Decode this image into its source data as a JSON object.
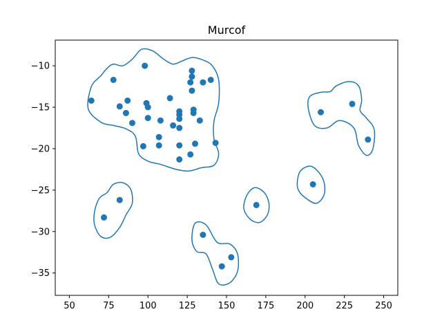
{
  "chart_data": {
    "type": "scatter",
    "title": "Murcof",
    "xlabel": "",
    "ylabel": "",
    "xlim": [
      41,
      259
    ],
    "ylim": [
      -37.7,
      -6.9
    ],
    "xticks": [
      50,
      75,
      100,
      125,
      150,
      175,
      200,
      225,
      250
    ],
    "yticks": [
      -35,
      -30,
      -25,
      -20,
      -15,
      -10
    ],
    "grid": false,
    "color": "#1f77b4",
    "points": [
      {
        "x": 64,
        "y": -14.2
      },
      {
        "x": 78,
        "y": -11.7
      },
      {
        "x": 82,
        "y": -14.9
      },
      {
        "x": 86,
        "y": -15.7
      },
      {
        "x": 87,
        "y": -14.2
      },
      {
        "x": 90,
        "y": -16.9
      },
      {
        "x": 97,
        "y": -19.7
      },
      {
        "x": 98,
        "y": -10.0
      },
      {
        "x": 99,
        "y": -14.5
      },
      {
        "x": 100,
        "y": -15.0
      },
      {
        "x": 100,
        "y": -16.3
      },
      {
        "x": 107,
        "y": -19.6
      },
      {
        "x": 107,
        "y": -18.6
      },
      {
        "x": 108,
        "y": -16.6
      },
      {
        "x": 114,
        "y": -13.9
      },
      {
        "x": 116,
        "y": -17.2
      },
      {
        "x": 120,
        "y": -15.5
      },
      {
        "x": 120,
        "y": -15.9
      },
      {
        "x": 120,
        "y": -16.4
      },
      {
        "x": 120,
        "y": -17.5
      },
      {
        "x": 120,
        "y": -19.6
      },
      {
        "x": 120,
        "y": -21.3
      },
      {
        "x": 127,
        "y": -20.7
      },
      {
        "x": 127,
        "y": -12.0
      },
      {
        "x": 128,
        "y": -10.6
      },
      {
        "x": 128,
        "y": -11.3
      },
      {
        "x": 128,
        "y": -13.0
      },
      {
        "x": 129,
        "y": -15.3
      },
      {
        "x": 129,
        "y": -15.7
      },
      {
        "x": 130,
        "y": -19.4
      },
      {
        "x": 133,
        "y": -16.6
      },
      {
        "x": 135,
        "y": -12.0
      },
      {
        "x": 140,
        "y": -11.7
      },
      {
        "x": 143,
        "y": -19.3
      },
      {
        "x": 72,
        "y": -28.3
      },
      {
        "x": 82,
        "y": -26.2
      },
      {
        "x": 135,
        "y": -30.4
      },
      {
        "x": 147,
        "y": -34.2
      },
      {
        "x": 153,
        "y": -33.1
      },
      {
        "x": 169,
        "y": -26.8
      },
      {
        "x": 205,
        "y": -24.3
      },
      {
        "x": 210,
        "y": -15.6
      },
      {
        "x": 230,
        "y": -14.6
      },
      {
        "x": 240,
        "y": -18.9
      }
    ],
    "contours": [
      [
        [
          62,
          -15.2
        ],
        [
          64,
          -12.5
        ],
        [
          70,
          -11.2
        ],
        [
          74,
          -10.3
        ],
        [
          78,
          -9.8
        ],
        [
          84,
          -10.0
        ],
        [
          90,
          -9.2
        ],
        [
          96,
          -8.0
        ],
        [
          103,
          -8.2
        ],
        [
          110,
          -9.2
        ],
        [
          116,
          -9.8
        ],
        [
          122,
          -9.4
        ],
        [
          128,
          -9.0
        ],
        [
          135,
          -9.3
        ],
        [
          141,
          -10.0
        ],
        [
          145,
          -11.7
        ],
        [
          145,
          -14.5
        ],
        [
          142,
          -16.7
        ],
        [
          142,
          -18.8
        ],
        [
          145,
          -20.6
        ],
        [
          142,
          -22.0
        ],
        [
          134,
          -22.3
        ],
        [
          126,
          -22.7
        ],
        [
          118,
          -22.5
        ],
        [
          108,
          -21.9
        ],
        [
          100,
          -21.5
        ],
        [
          94,
          -20.6
        ],
        [
          92,
          -18.5
        ],
        [
          86,
          -17.6
        ],
        [
          78,
          -17.2
        ],
        [
          70,
          -16.8
        ]
      ],
      [
        [
          66,
          -27.6
        ],
        [
          69,
          -26.0
        ],
        [
          74,
          -25.3
        ],
        [
          78,
          -24.3
        ],
        [
          84,
          -24.1
        ],
        [
          89,
          -24.9
        ],
        [
          90,
          -26.6
        ],
        [
          86,
          -28.0
        ],
        [
          82,
          -29.5
        ],
        [
          76,
          -30.7
        ],
        [
          70,
          -30.6
        ],
        [
          66,
          -29.2
        ]
      ],
      [
        [
          128,
          -31.0
        ],
        [
          130,
          -29.0
        ],
        [
          137,
          -29.2
        ],
        [
          144,
          -31.3
        ],
        [
          152,
          -31.5
        ],
        [
          157,
          -32.7
        ],
        [
          157,
          -34.8
        ],
        [
          152,
          -36.2
        ],
        [
          145,
          -36.3
        ],
        [
          141,
          -34.5
        ],
        [
          137,
          -32.7
        ],
        [
          131,
          -32.4
        ]
      ],
      [
        [
          161,
          -27.2
        ],
        [
          163,
          -25.6
        ],
        [
          168,
          -24.7
        ],
        [
          174,
          -25.3
        ],
        [
          177,
          -26.6
        ],
        [
          176,
          -28.0
        ],
        [
          171,
          -28.9
        ],
        [
          165,
          -28.5
        ]
      ],
      [
        [
          195,
          -24.1
        ],
        [
          197,
          -22.7
        ],
        [
          203,
          -22.1
        ],
        [
          208,
          -22.7
        ],
        [
          212,
          -24.0
        ],
        [
          212,
          -25.6
        ],
        [
          207,
          -26.6
        ],
        [
          200,
          -25.9
        ],
        [
          196,
          -25.1
        ]
      ],
      [
        [
          202,
          -15.1
        ],
        [
          203,
          -13.7
        ],
        [
          210,
          -13.2
        ],
        [
          216,
          -13.1
        ],
        [
          220,
          -12.4
        ],
        [
          228,
          -11.9
        ],
        [
          234,
          -12.4
        ],
        [
          236,
          -14.1
        ],
        [
          235,
          -15.4
        ],
        [
          239,
          -16.3
        ],
        [
          244,
          -17.7
        ],
        [
          243,
          -20.1
        ],
        [
          239,
          -20.8
        ],
        [
          234,
          -19.6
        ],
        [
          231,
          -17.5
        ],
        [
          222,
          -16.6
        ],
        [
          214,
          -17.5
        ],
        [
          206,
          -17.2
        ]
      ]
    ]
  }
}
